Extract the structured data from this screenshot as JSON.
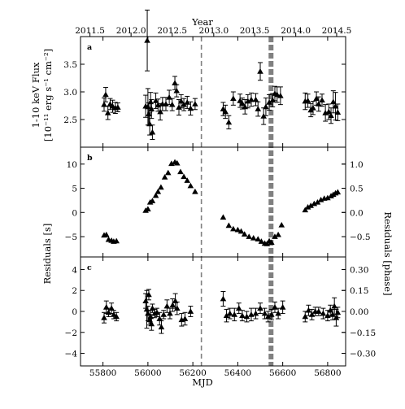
{
  "chart_data": {
    "type": "scatter",
    "shared_x": {
      "xlabel": "MJD",
      "xlim": [
        55700,
        56880
      ],
      "ticks": [
        55800,
        56000,
        56200,
        56400,
        56600,
        56800
      ],
      "tick_labels": [
        "55800",
        "56000",
        "56200",
        "56400",
        "56600",
        "56800"
      ],
      "top_axis": {
        "label": "Year",
        "tick_values_mjd": [
          55742,
          55925,
          56108,
          56293,
          56475,
          56658,
          56840
        ],
        "tick_labels": [
          "2011.5",
          "2012.0",
          "2012.5",
          "2013.0",
          "2013.5",
          "2014.0",
          "2014.5"
        ]
      }
    },
    "vertical_markers": [
      {
        "style": "dashed",
        "color": "#808080",
        "x": 56238
      },
      {
        "style": "thick-dashed",
        "color": "#808080",
        "x": 56548
      }
    ],
    "panels": [
      {
        "letter": "a",
        "ylabel_line1": "1-10 keV Flux",
        "ylabel_line2": "[10⁻¹¹ erg s⁻¹ cm⁻²]",
        "ylim": [
          2.0,
          4.0
        ],
        "yticks": [
          2.5,
          3.0,
          3.5
        ],
        "ytick_labels": [
          "2.5",
          "3.0",
          "3.5"
        ],
        "marker": "triangle",
        "points": [
          {
            "x": 55805,
            "y": 2.77,
            "err": 0.12
          },
          {
            "x": 55812,
            "y": 2.95,
            "err": 0.13
          },
          {
            "x": 55822,
            "y": 2.62,
            "err": 0.12
          },
          {
            "x": 55832,
            "y": 2.78,
            "err": 0.1
          },
          {
            "x": 55843,
            "y": 2.74,
            "err": 0.11
          },
          {
            "x": 55855,
            "y": 2.71,
            "err": 0.1
          },
          {
            "x": 55866,
            "y": 2.72,
            "err": 0.08
          },
          {
            "x": 55990,
            "y": 2.74,
            "err": 0.2
          },
          {
            "x": 55997,
            "y": 3.93,
            "err": 0.55
          },
          {
            "x": 56000,
            "y": 2.73,
            "err": 0.33
          },
          {
            "x": 56004,
            "y": 2.6,
            "err": 0.2
          },
          {
            "x": 56008,
            "y": 2.42,
            "err": 0.2
          },
          {
            "x": 56012,
            "y": 2.82,
            "err": 0.17
          },
          {
            "x": 56016,
            "y": 2.69,
            "err": 0.17
          },
          {
            "x": 56020,
            "y": 2.27,
            "err": 0.13
          },
          {
            "x": 56035,
            "y": 2.84,
            "err": 0.14
          },
          {
            "x": 56045,
            "y": 2.76,
            "err": 0.11
          },
          {
            "x": 56055,
            "y": 2.64,
            "err": 0.15
          },
          {
            "x": 56065,
            "y": 2.78,
            "err": 0.12
          },
          {
            "x": 56080,
            "y": 2.78,
            "err": 0.12
          },
          {
            "x": 56095,
            "y": 2.9,
            "err": 0.13
          },
          {
            "x": 56108,
            "y": 2.77,
            "err": 0.11
          },
          {
            "x": 56120,
            "y": 3.16,
            "err": 0.12
          },
          {
            "x": 56128,
            "y": 3.02,
            "err": 0.11
          },
          {
            "x": 56138,
            "y": 2.72,
            "err": 0.14
          },
          {
            "x": 56148,
            "y": 2.83,
            "err": 0.12
          },
          {
            "x": 56160,
            "y": 2.77,
            "err": 0.11
          },
          {
            "x": 56175,
            "y": 2.81,
            "err": 0.11
          },
          {
            "x": 56190,
            "y": 2.7,
            "err": 0.12
          },
          {
            "x": 56210,
            "y": 2.78,
            "err": 0.1
          },
          {
            "x": 56335,
            "y": 2.69,
            "err": 0.12
          },
          {
            "x": 56345,
            "y": 2.64,
            "err": 0.12
          },
          {
            "x": 56360,
            "y": 2.45,
            "err": 0.12
          },
          {
            "x": 56380,
            "y": 2.88,
            "err": 0.12
          },
          {
            "x": 56410,
            "y": 2.84,
            "err": 0.12
          },
          {
            "x": 56420,
            "y": 2.79,
            "err": 0.1
          },
          {
            "x": 56432,
            "y": 2.73,
            "err": 0.13
          },
          {
            "x": 56445,
            "y": 2.83,
            "err": 0.12
          },
          {
            "x": 56460,
            "y": 2.86,
            "err": 0.12
          },
          {
            "x": 56480,
            "y": 2.86,
            "err": 0.11
          },
          {
            "x": 56490,
            "y": 2.69,
            "err": 0.13
          },
          {
            "x": 56500,
            "y": 3.37,
            "err": 0.16
          },
          {
            "x": 56515,
            "y": 2.56,
            "err": 0.15
          },
          {
            "x": 56525,
            "y": 2.73,
            "err": 0.16
          },
          {
            "x": 56540,
            "y": 2.81,
            "err": 0.14
          },
          {
            "x": 56555,
            "y": 2.85,
            "err": 0.12
          },
          {
            "x": 56565,
            "y": 2.97,
            "err": 0.13
          },
          {
            "x": 56575,
            "y": 2.95,
            "err": 0.14
          },
          {
            "x": 56590,
            "y": 2.93,
            "err": 0.16
          },
          {
            "x": 56700,
            "y": 2.83,
            "err": 0.15
          },
          {
            "x": 56712,
            "y": 2.84,
            "err": 0.12
          },
          {
            "x": 56725,
            "y": 2.67,
            "err": 0.12
          },
          {
            "x": 56735,
            "y": 2.71,
            "err": 0.12
          },
          {
            "x": 56750,
            "y": 2.88,
            "err": 0.12
          },
          {
            "x": 56760,
            "y": 2.78,
            "err": 0.13
          },
          {
            "x": 56775,
            "y": 2.85,
            "err": 0.11
          },
          {
            "x": 56790,
            "y": 2.62,
            "err": 0.15
          },
          {
            "x": 56805,
            "y": 2.64,
            "err": 0.14
          },
          {
            "x": 56815,
            "y": 2.57,
            "err": 0.14
          },
          {
            "x": 56825,
            "y": 2.82,
            "err": 0.2
          },
          {
            "x": 56835,
            "y": 2.74,
            "err": 0.25
          },
          {
            "x": 56845,
            "y": 2.63,
            "err": 0.15
          }
        ]
      },
      {
        "letter": "b",
        "ylim": [
          -9.2,
          13.5
        ],
        "yticks": [
          -5,
          0,
          5,
          10
        ],
        "ytick_labels": [
          "−5",
          "0",
          "5",
          "10"
        ],
        "right_yticks": [
          -0.5,
          0.0,
          0.5,
          1.0
        ],
        "right_ytick_labels": [
          "−0.5",
          "0.0",
          "0.5",
          "1.0"
        ],
        "marker": "triangle",
        "points": [
          {
            "x": 55805,
            "y": -4.7
          },
          {
            "x": 55815,
            "y": -4.6
          },
          {
            "x": 55825,
            "y": -5.6
          },
          {
            "x": 55838,
            "y": -5.8
          },
          {
            "x": 55848,
            "y": -6.0
          },
          {
            "x": 55860,
            "y": -5.9
          },
          {
            "x": 55990,
            "y": 0.4
          },
          {
            "x": 56000,
            "y": 0.7
          },
          {
            "x": 56010,
            "y": 2.1
          },
          {
            "x": 56020,
            "y": 2.4
          },
          {
            "x": 56035,
            "y": 3.5
          },
          {
            "x": 56045,
            "y": 4.3
          },
          {
            "x": 56058,
            "y": 5.2
          },
          {
            "x": 56075,
            "y": 7.3
          },
          {
            "x": 56090,
            "y": 8.2
          },
          {
            "x": 56105,
            "y": 10.1
          },
          {
            "x": 56120,
            "y": 10.4
          },
          {
            "x": 56130,
            "y": 10.2
          },
          {
            "x": 56145,
            "y": 8.4
          },
          {
            "x": 56160,
            "y": 7.4
          },
          {
            "x": 56175,
            "y": 6.6
          },
          {
            "x": 56190,
            "y": 5.5
          },
          {
            "x": 56210,
            "y": 4.3
          },
          {
            "x": 56335,
            "y": -1.0
          },
          {
            "x": 56360,
            "y": -2.7
          },
          {
            "x": 56380,
            "y": -3.4
          },
          {
            "x": 56400,
            "y": -3.6
          },
          {
            "x": 56415,
            "y": -3.9
          },
          {
            "x": 56430,
            "y": -4.5
          },
          {
            "x": 56450,
            "y": -5.0
          },
          {
            "x": 56470,
            "y": -5.3
          },
          {
            "x": 56490,
            "y": -5.5
          },
          {
            "x": 56505,
            "y": -6.0
          },
          {
            "x": 56520,
            "y": -6.4
          },
          {
            "x": 56530,
            "y": -6.5
          },
          {
            "x": 56540,
            "y": -5.9
          },
          {
            "x": 56550,
            "y": -6.2
          },
          {
            "x": 56565,
            "y": -5.0
          },
          {
            "x": 56580,
            "y": -4.6
          },
          {
            "x": 56595,
            "y": -2.6
          },
          {
            "x": 56700,
            "y": 0.5
          },
          {
            "x": 56712,
            "y": 1.1
          },
          {
            "x": 56725,
            "y": 1.4
          },
          {
            "x": 56740,
            "y": 1.8
          },
          {
            "x": 56755,
            "y": 2.1
          },
          {
            "x": 56770,
            "y": 2.6
          },
          {
            "x": 56785,
            "y": 2.9
          },
          {
            "x": 56800,
            "y": 3.0
          },
          {
            "x": 56815,
            "y": 3.4
          },
          {
            "x": 56825,
            "y": 3.7
          },
          {
            "x": 56835,
            "y": 4.0
          },
          {
            "x": 56845,
            "y": 4.2
          }
        ]
      },
      {
        "letter": "c",
        "ylim": [
          -5.2,
          5.2
        ],
        "yticks": [
          -4,
          -2,
          0,
          2,
          4
        ],
        "ytick_labels": [
          "−4",
          "−2",
          "0",
          "2",
          "4"
        ],
        "right_yticks": [
          -0.3,
          -0.15,
          0.0,
          0.15,
          0.3
        ],
        "right_ytick_labels": [
          "−0.30",
          "−0.15",
          "0.00",
          "0.15",
          "0.30"
        ],
        "marker": "triangle",
        "points": [
          {
            "x": 55805,
            "y": -0.6,
            "err": 0.5
          },
          {
            "x": 55815,
            "y": 0.4,
            "err": 0.6
          },
          {
            "x": 55825,
            "y": -0.1,
            "err": 0.4
          },
          {
            "x": 55838,
            "y": 0.3,
            "err": 0.5
          },
          {
            "x": 55848,
            "y": -0.3,
            "err": 0.4
          },
          {
            "x": 55860,
            "y": -0.5,
            "err": 0.4
          },
          {
            "x": 55990,
            "y": 1.0,
            "err": 0.7
          },
          {
            "x": 55995,
            "y": 0.2,
            "err": 1.8
          },
          {
            "x": 56000,
            "y": -0.2,
            "err": 0.7
          },
          {
            "x": 56004,
            "y": 1.6,
            "err": 0.5
          },
          {
            "x": 56008,
            "y": -0.8,
            "err": 0.5
          },
          {
            "x": 56012,
            "y": -0.5,
            "err": 0.6
          },
          {
            "x": 56016,
            "y": -1.2,
            "err": 0.6
          },
          {
            "x": 56020,
            "y": 0.3,
            "err": 0.4
          },
          {
            "x": 56030,
            "y": -0.2,
            "err": 0.4
          },
          {
            "x": 56040,
            "y": -0.1,
            "err": 0.4
          },
          {
            "x": 56052,
            "y": -0.7,
            "err": 0.6
          },
          {
            "x": 56060,
            "y": -1.5,
            "err": 0.6
          },
          {
            "x": 56070,
            "y": -0.3,
            "err": 0.4
          },
          {
            "x": 56085,
            "y": 0.5,
            "err": 0.6
          },
          {
            "x": 56098,
            "y": -0.2,
            "err": 0.5
          },
          {
            "x": 56110,
            "y": 0.6,
            "err": 0.6
          },
          {
            "x": 56122,
            "y": 1.0,
            "err": 0.7
          },
          {
            "x": 56130,
            "y": 0.3,
            "err": 0.6
          },
          {
            "x": 56150,
            "y": -0.8,
            "err": 0.6
          },
          {
            "x": 56165,
            "y": -0.7,
            "err": 0.6
          },
          {
            "x": 56190,
            "y": 0.0,
            "err": 0.5
          },
          {
            "x": 56335,
            "y": 1.2,
            "err": 0.7
          },
          {
            "x": 56350,
            "y": -0.4,
            "err": 0.6
          },
          {
            "x": 56365,
            "y": -0.2,
            "err": 0.5
          },
          {
            "x": 56385,
            "y": -0.3,
            "err": 0.6
          },
          {
            "x": 56405,
            "y": 0.3,
            "err": 0.5
          },
          {
            "x": 56420,
            "y": -0.4,
            "err": 0.5
          },
          {
            "x": 56440,
            "y": -0.5,
            "err": 0.5
          },
          {
            "x": 56460,
            "y": -0.3,
            "err": 0.6
          },
          {
            "x": 56480,
            "y": -0.2,
            "err": 0.5
          },
          {
            "x": 56500,
            "y": 0.3,
            "err": 0.5
          },
          {
            "x": 56520,
            "y": -0.2,
            "err": 0.5
          },
          {
            "x": 56535,
            "y": -0.5,
            "err": 0.5
          },
          {
            "x": 56550,
            "y": -0.3,
            "err": 0.5
          },
          {
            "x": 56565,
            "y": 0.4,
            "err": 0.5
          },
          {
            "x": 56580,
            "y": -0.2,
            "err": 0.5
          },
          {
            "x": 56600,
            "y": 0.4,
            "err": 0.6
          },
          {
            "x": 56700,
            "y": -0.5,
            "err": 0.5
          },
          {
            "x": 56715,
            "y": 0.1,
            "err": 0.5
          },
          {
            "x": 56730,
            "y": -0.3,
            "err": 0.5
          },
          {
            "x": 56745,
            "y": 0.0,
            "err": 0.4
          },
          {
            "x": 56760,
            "y": 0.0,
            "err": 0.4
          },
          {
            "x": 56780,
            "y": -0.2,
            "err": 0.5
          },
          {
            "x": 56800,
            "y": -0.4,
            "err": 0.5
          },
          {
            "x": 56812,
            "y": 0.1,
            "err": 0.5
          },
          {
            "x": 56822,
            "y": -0.3,
            "err": 0.5
          },
          {
            "x": 56830,
            "y": 0.5,
            "err": 0.8
          },
          {
            "x": 56838,
            "y": -0.6,
            "err": 0.8
          },
          {
            "x": 56845,
            "y": -0.1,
            "err": 0.5
          }
        ]
      }
    ],
    "shared_ylabel_left": "Residuals [s]",
    "shared_ylabel_right": "Residuals [phase]"
  }
}
